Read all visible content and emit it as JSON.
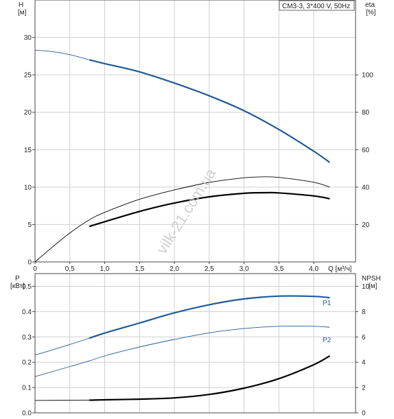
{
  "header": {
    "pump_label": "CM3-3, 3*400 V, 50Hz"
  },
  "watermark": "vilk-21.com.ua",
  "colors": {
    "blue": "#1f5a96",
    "black": "#000000",
    "grid": "#cfcfcf"
  },
  "chart_data": [
    {
      "type": "line",
      "name": "performance",
      "xlabel": "Q [м³/ч]",
      "x_ticks": [
        "0",
        "0,5",
        "1,0",
        "1,5",
        "2,0",
        "2,5",
        "3,0",
        "3,5",
        "4,0"
      ],
      "xlim": [
        0,
        4.6
      ],
      "left_axis": {
        "label": "H",
        "unit": "[м]",
        "ticks": [
          "0",
          "5",
          "10",
          "15",
          "20",
          "25",
          "30"
        ],
        "ylim": [
          0,
          35
        ]
      },
      "right_axis": {
        "label": "eta",
        "unit": "[%]",
        "ticks": [
          "20",
          "40",
          "60",
          "80",
          "100"
        ],
        "ylim": [
          0,
          140
        ]
      },
      "grid": true,
      "series": [
        {
          "axis": "left",
          "color": "#1f5a96",
          "x": [
            0,
            0.25,
            0.5,
            0.78,
            1.0,
            1.5,
            2.0,
            2.5,
            3.0,
            3.5,
            4.0,
            4.23
          ],
          "y": [
            28.3,
            28.1,
            27.7,
            27.0,
            26.5,
            25.4,
            23.9,
            22.2,
            20.2,
            17.7,
            14.8,
            13.3
          ],
          "solid_from": 0.78
        },
        {
          "axis": "right",
          "color": "#000000",
          "x": [
            0,
            0.25,
            0.5,
            0.78,
            1.0,
            1.5,
            2.0,
            2.5,
            3.0,
            3.25,
            3.5,
            4.0,
            4.23
          ],
          "y": [
            0,
            8,
            15.5,
            22.5,
            26.5,
            33.5,
            38.5,
            42.5,
            45,
            45.5,
            45.2,
            42.6,
            40
          ],
          "solid_from": 4.3
        },
        {
          "axis": "right",
          "color": "#000000",
          "x": [
            0.78,
            1.0,
            1.5,
            2.0,
            2.5,
            3.0,
            3.3,
            3.5,
            4.0,
            4.23
          ],
          "y": [
            19,
            21.5,
            27,
            31.5,
            34.8,
            36.7,
            37,
            36.9,
            35.3,
            33.8
          ],
          "solid_from": 0.78
        }
      ]
    },
    {
      "type": "line",
      "name": "power",
      "xlim": [
        0,
        4.6
      ],
      "left_axis": {
        "label": "P",
        "unit": "[кВт]",
        "ticks": [
          "0.0",
          "0.1",
          "0.2",
          "0.3",
          "0.4",
          "0.5"
        ],
        "ylim": [
          0,
          0.55
        ]
      },
      "right_axis": {
        "label": "NPSH",
        "unit": "[м]",
        "ticks": [
          "0",
          "2",
          "4",
          "6",
          "8",
          "10"
        ],
        "ylim": [
          0,
          11
        ]
      },
      "grid": true,
      "series": [
        {
          "name": "P1",
          "axis": "left",
          "color": "#1f5a96",
          "x": [
            0,
            0.5,
            0.78,
            1.0,
            1.5,
            2.0,
            2.5,
            3.0,
            3.5,
            4.0,
            4.23
          ],
          "y": [
            0.228,
            0.27,
            0.295,
            0.315,
            0.355,
            0.395,
            0.427,
            0.45,
            0.461,
            0.46,
            0.455
          ],
          "solid_from": 0.78
        },
        {
          "name": "P2",
          "axis": "left",
          "color": "#1f5a96",
          "x": [
            0,
            0.5,
            0.78,
            1.0,
            1.5,
            2.0,
            2.5,
            3.0,
            3.5,
            4.0,
            4.23
          ],
          "y": [
            0.143,
            0.183,
            0.205,
            0.225,
            0.26,
            0.29,
            0.316,
            0.333,
            0.342,
            0.342,
            0.338
          ],
          "solid_from": 4.3
        },
        {
          "axis": "right",
          "color": "#000000",
          "x": [
            0,
            0.78,
            1.0,
            1.5,
            2.0,
            2.5,
            3.0,
            3.5,
            4.0,
            4.23
          ],
          "y": [
            0.98,
            1.0,
            1.03,
            1.08,
            1.18,
            1.45,
            1.95,
            2.7,
            3.8,
            4.5
          ],
          "solid_from": 0.78
        }
      ]
    }
  ]
}
